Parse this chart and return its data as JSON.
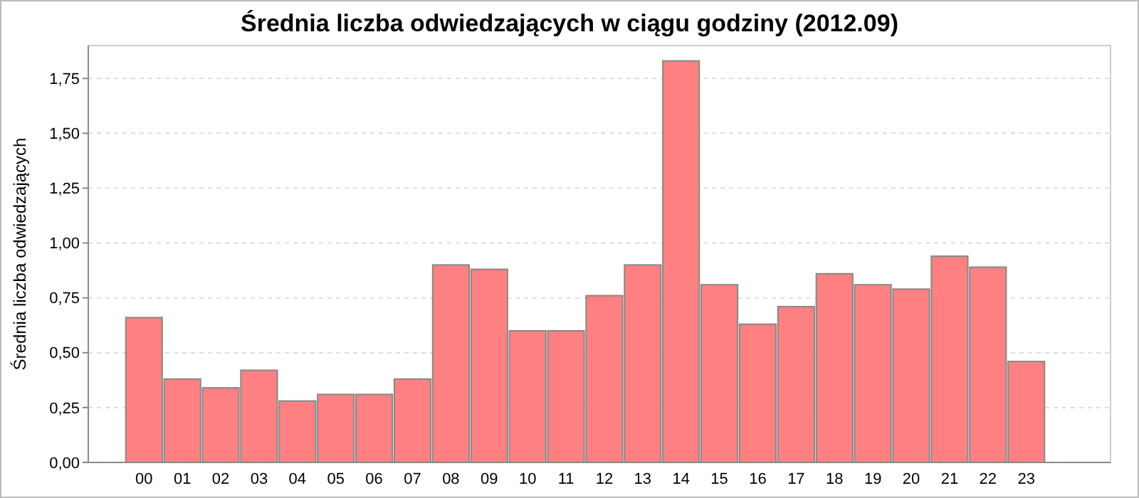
{
  "chart_data": {
    "type": "bar",
    "title": "Średnia liczba odwiedzających w ciągu godziny (2012.09)",
    "ylabel": "Średnia liczba odwiedzających",
    "categories": [
      "00",
      "01",
      "02",
      "03",
      "04",
      "05",
      "06",
      "07",
      "08",
      "09",
      "10",
      "11",
      "12",
      "13",
      "14",
      "15",
      "16",
      "17",
      "18",
      "19",
      "20",
      "21",
      "22",
      "23"
    ],
    "values": [
      0.66,
      0.38,
      0.34,
      0.42,
      0.28,
      0.31,
      0.31,
      0.38,
      0.9,
      0.88,
      0.6,
      0.6,
      0.76,
      0.9,
      1.83,
      0.81,
      0.63,
      0.71,
      0.86,
      0.81,
      0.79,
      0.94,
      0.89,
      0.46
    ],
    "color": "#ff8080",
    "ylim": [
      0,
      1.9
    ],
    "yticks": [
      {
        "value": 0,
        "label": "0,00"
      },
      {
        "value": 0.25,
        "label": "0,25"
      },
      {
        "value": 0.5,
        "label": "0,50"
      },
      {
        "value": 0.75,
        "label": "0,75"
      },
      {
        "value": 1,
        "label": "1,00"
      },
      {
        "value": 1.25,
        "label": "1,25"
      },
      {
        "value": 1.5,
        "label": "1,50"
      },
      {
        "value": 1.75,
        "label": "1,75"
      }
    ],
    "grid": "y"
  }
}
